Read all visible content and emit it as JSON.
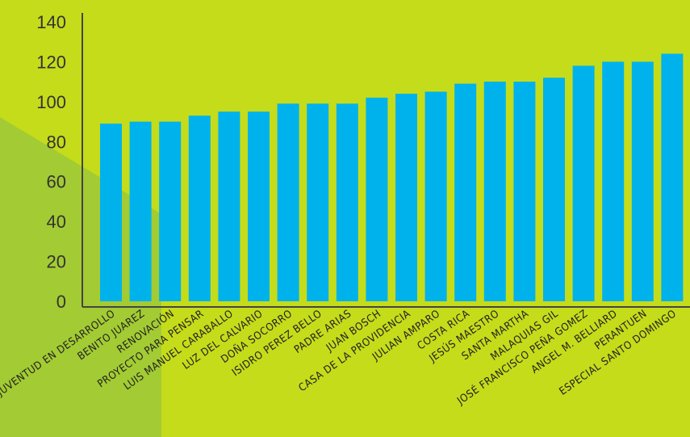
{
  "colors": {
    "background": "#c5dc1a",
    "background_shape": "#a3cb33",
    "bar": "#00b2ec",
    "axis": "#444444"
  },
  "chart_data": {
    "type": "bar",
    "categories": [
      "JUVENTUD EN DESARROLLO",
      "BENITO JUAREZ",
      "RENOVACIÓN",
      "PROYECTO PARA PENSAR",
      "LUIS MANUEL CARABALLO",
      "LUZ DEL CALVARIO",
      "DOÑA SOCORRO",
      "ISIDRO PEREZ BELLO",
      "PADRE ARIAS",
      "JUAN BOSCH",
      "CASA DE LA PROVIDENCIA",
      "JULIAN AMPARO",
      "COSTA RICA",
      "JESÚS MAESTRO",
      "SANTA MARTHA",
      "MALAQUIAS GIL",
      "JOSÉ FRANCISCO PEÑA GOMEZ",
      "ANGEL M. BELLIARD",
      "PERANTUEN",
      "ESPECIAL SANTO DOMINGO"
    ],
    "values": [
      89,
      90,
      90,
      93,
      95,
      95,
      99,
      99,
      99,
      102,
      104,
      105,
      109,
      110,
      110,
      112,
      118,
      120,
      120,
      124
    ],
    "ylim": [
      0,
      140
    ],
    "yticks": [
      "0",
      "20",
      "40",
      "60",
      "80",
      "100",
      "120",
      "140"
    ],
    "title": "",
    "xlabel": "",
    "ylabel": "",
    "grid": false,
    "legend": "none"
  }
}
